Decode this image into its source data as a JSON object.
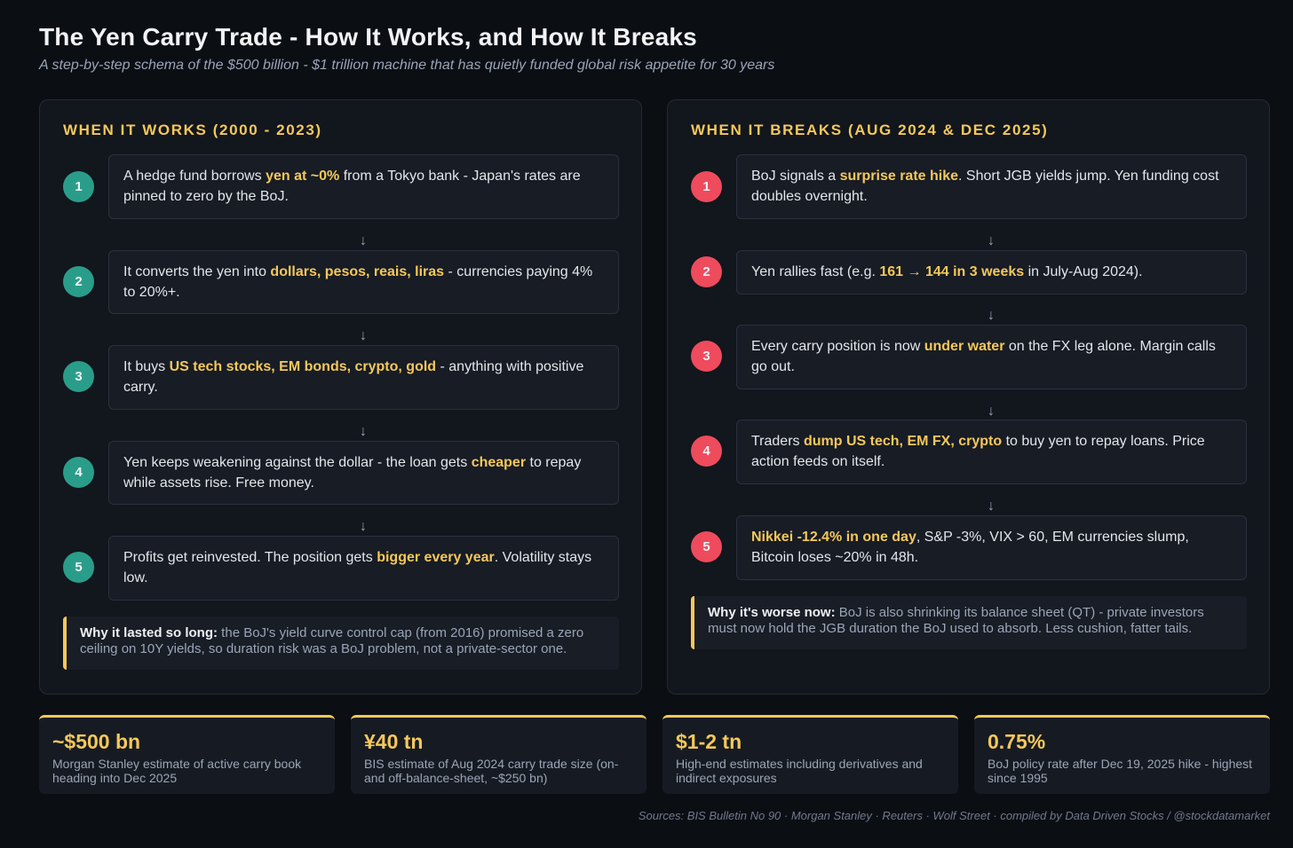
{
  "header": {
    "title": "The Yen Carry Trade - How It Works, and How It Breaks",
    "subtitle": "A step-by-step schema of the $500 billion - $1 trillion machine that has quietly funded global risk appetite for 30 years"
  },
  "arrow_glyph": "↓",
  "works": {
    "heading": "WHEN IT WORKS (2000 - 2023)",
    "steps": [
      {
        "num": "1",
        "pre": "A hedge fund borrows ",
        "hl": "yen at ~0%",
        "post": " from a Tokyo bank - Japan's rates are pinned to zero by the BoJ."
      },
      {
        "num": "2",
        "pre": "It converts the yen into ",
        "hl": "dollars, pesos, reais, liras",
        "post": " - currencies paying 4% to 20%+."
      },
      {
        "num": "3",
        "pre": "It buys ",
        "hl": "US tech stocks, EM bonds, crypto, gold",
        "post": " - anything with positive carry."
      },
      {
        "num": "4",
        "pre": "Yen keeps weakening against the dollar - the loan gets ",
        "hl": "cheaper",
        "post": " to repay while assets rise. Free money."
      },
      {
        "num": "5",
        "pre": "Profits get reinvested. The position gets ",
        "hl": "bigger every year",
        "post": ". Volatility stays low."
      }
    ],
    "note": {
      "label": "Why it lasted so long:",
      "text": " the BoJ's yield curve control cap (from 2016) promised a zero ceiling on 10Y yields, so duration risk was a BoJ problem, not a private-sector one."
    }
  },
  "breaks": {
    "heading": "WHEN IT BREAKS (AUG 2024 & DEC 2025)",
    "steps": [
      {
        "num": "1",
        "pre": "BoJ signals a ",
        "hl": "surprise rate hike",
        "post": ". Short JGB yields jump. Yen funding cost doubles overnight."
      },
      {
        "num": "2",
        "pre": "Yen rallies fast (e.g. ",
        "hl": "161 → 144 in 3 weeks",
        "post": " in July-Aug 2024)."
      },
      {
        "num": "3",
        "pre": "Every carry position is now ",
        "hl": "under water",
        "post": " on the FX leg alone. Margin calls go out."
      },
      {
        "num": "4",
        "pre": "Traders ",
        "hl": "dump US tech, EM FX, crypto",
        "post": " to buy yen to repay loans. Price action feeds on itself."
      },
      {
        "num": "5",
        "pre": "",
        "hl": "Nikkei -12.4% in one day",
        "post": ", S&P -3%, VIX > 60, EM currencies slump, Bitcoin loses ~20% in 48h."
      }
    ],
    "note": {
      "label": "Why it's worse now:",
      "text": " BoJ is also shrinking its balance sheet (QT) - private investors must now hold the JGB duration the BoJ used to absorb. Less cushion, fatter tails."
    }
  },
  "stats": [
    {
      "value": "~$500 bn",
      "desc": "Morgan Stanley estimate of active carry book heading into Dec 2025"
    },
    {
      "value": "¥40 tn",
      "desc": "BIS estimate of Aug 2024 carry trade size (on- and off-balance-sheet, ~$250 bn)"
    },
    {
      "value": "$1-2 tn",
      "desc": "High-end estimates including derivatives and indirect exposures"
    },
    {
      "value": "0.75%",
      "desc": "BoJ policy rate after Dec 19, 2025 hike - highest since 1995"
    }
  ],
  "sources": "Sources: BIS Bulletin No 90 · Morgan Stanley · Reuters · Wolf Street · compiled by Data Driven Stocks / @stockdatamarket",
  "colors": {
    "accent": "#f5c85a",
    "works_badge": "#2a9d8a",
    "breaks_badge": "#ee4b5d",
    "background": "#0b0e13",
    "panel": "#12161d"
  }
}
